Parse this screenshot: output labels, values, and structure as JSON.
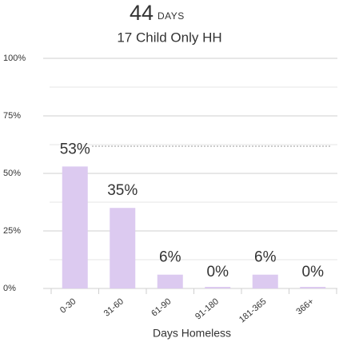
{
  "chart_data": {
    "type": "bar",
    "headline": "44",
    "headline_unit": "DAYS",
    "title": "17 Child Only HH",
    "x_label": "Days Homeless",
    "categories": [
      "0-30",
      "31-60",
      "61-90",
      "91-180",
      "181-365",
      "366+"
    ],
    "values": [
      53,
      35,
      6,
      0,
      6,
      0
    ],
    "value_labels": [
      "53%",
      "35%",
      "6%",
      "0%",
      "6%",
      "0%"
    ],
    "color": "#dccaf0",
    "ylim": [
      0,
      100
    ],
    "yticks": [
      {
        "value": 0,
        "label": "0%"
      },
      {
        "value": 25,
        "label": "25%"
      },
      {
        "value": 50,
        "label": "50%"
      },
      {
        "value": 75,
        "label": "75%"
      },
      {
        "value": 100,
        "label": "100%"
      }
    ],
    "minor_yticks": [
      12.5,
      37.5,
      62.5,
      87.5
    ],
    "grid": true
  }
}
